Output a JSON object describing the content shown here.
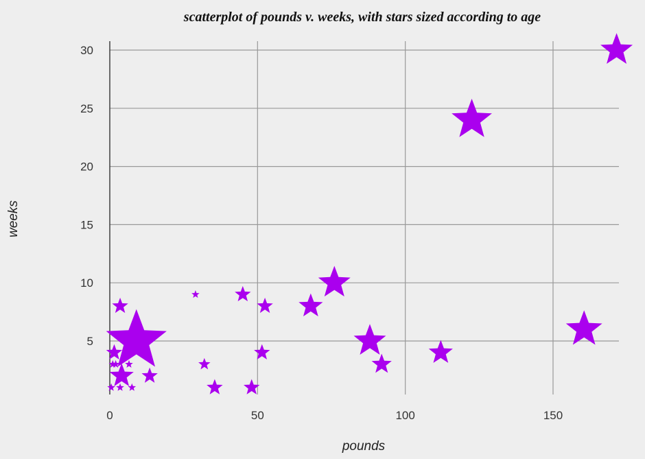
{
  "chart_data": {
    "type": "scatter",
    "title": "scatterplot of pounds v. weeks, with stars sized according to age",
    "xlabel": "pounds",
    "ylabel": "weeks",
    "xlim": [
      0,
      172
    ],
    "ylim": [
      0,
      31
    ],
    "x_ticks": [
      0,
      50,
      100,
      150
    ],
    "y_ticks": [
      5,
      10,
      15,
      20,
      25,
      30
    ],
    "x_tick_labels": [
      "0",
      "50",
      "100",
      "150"
    ],
    "y_tick_labels": [
      "5",
      "10",
      "15",
      "20",
      "25",
      "30"
    ],
    "grid": true,
    "marker": "star",
    "marker_color": "#aa00ee",
    "points": [
      {
        "x": 0.5,
        "y": 1,
        "age": 1
      },
      {
        "x": 1,
        "y": 3,
        "age": 1
      },
      {
        "x": 1.5,
        "y": 4,
        "age": 3
      },
      {
        "x": 2,
        "y": 3,
        "age": 1
      },
      {
        "x": 3.5,
        "y": 1,
        "age": 1
      },
      {
        "x": 3.5,
        "y": 8,
        "age": 3
      },
      {
        "x": 4,
        "y": 2,
        "age": 5
      },
      {
        "x": 6.5,
        "y": 3,
        "age": 1
      },
      {
        "x": 7.5,
        "y": 1,
        "age": 1
      },
      {
        "x": 9,
        "y": 5,
        "age": 14
      },
      {
        "x": 13.5,
        "y": 2,
        "age": 3
      },
      {
        "x": 29,
        "y": 9,
        "age": 1
      },
      {
        "x": 32,
        "y": 3,
        "age": 2
      },
      {
        "x": 35.5,
        "y": 1,
        "age": 3
      },
      {
        "x": 45,
        "y": 9,
        "age": 3
      },
      {
        "x": 48,
        "y": 1,
        "age": 3
      },
      {
        "x": 51.5,
        "y": 4,
        "age": 3
      },
      {
        "x": 52.5,
        "y": 8,
        "age": 3
      },
      {
        "x": 68,
        "y": 8,
        "age": 5
      },
      {
        "x": 76,
        "y": 10,
        "age": 7
      },
      {
        "x": 88,
        "y": 5,
        "age": 7
      },
      {
        "x": 92,
        "y": 3,
        "age": 4
      },
      {
        "x": 112,
        "y": 4,
        "age": 5
      },
      {
        "x": 122.5,
        "y": 24,
        "age": 9
      },
      {
        "x": 160.5,
        "y": 6,
        "age": 8
      },
      {
        "x": 171.5,
        "y": 30,
        "age": 7
      }
    ]
  }
}
